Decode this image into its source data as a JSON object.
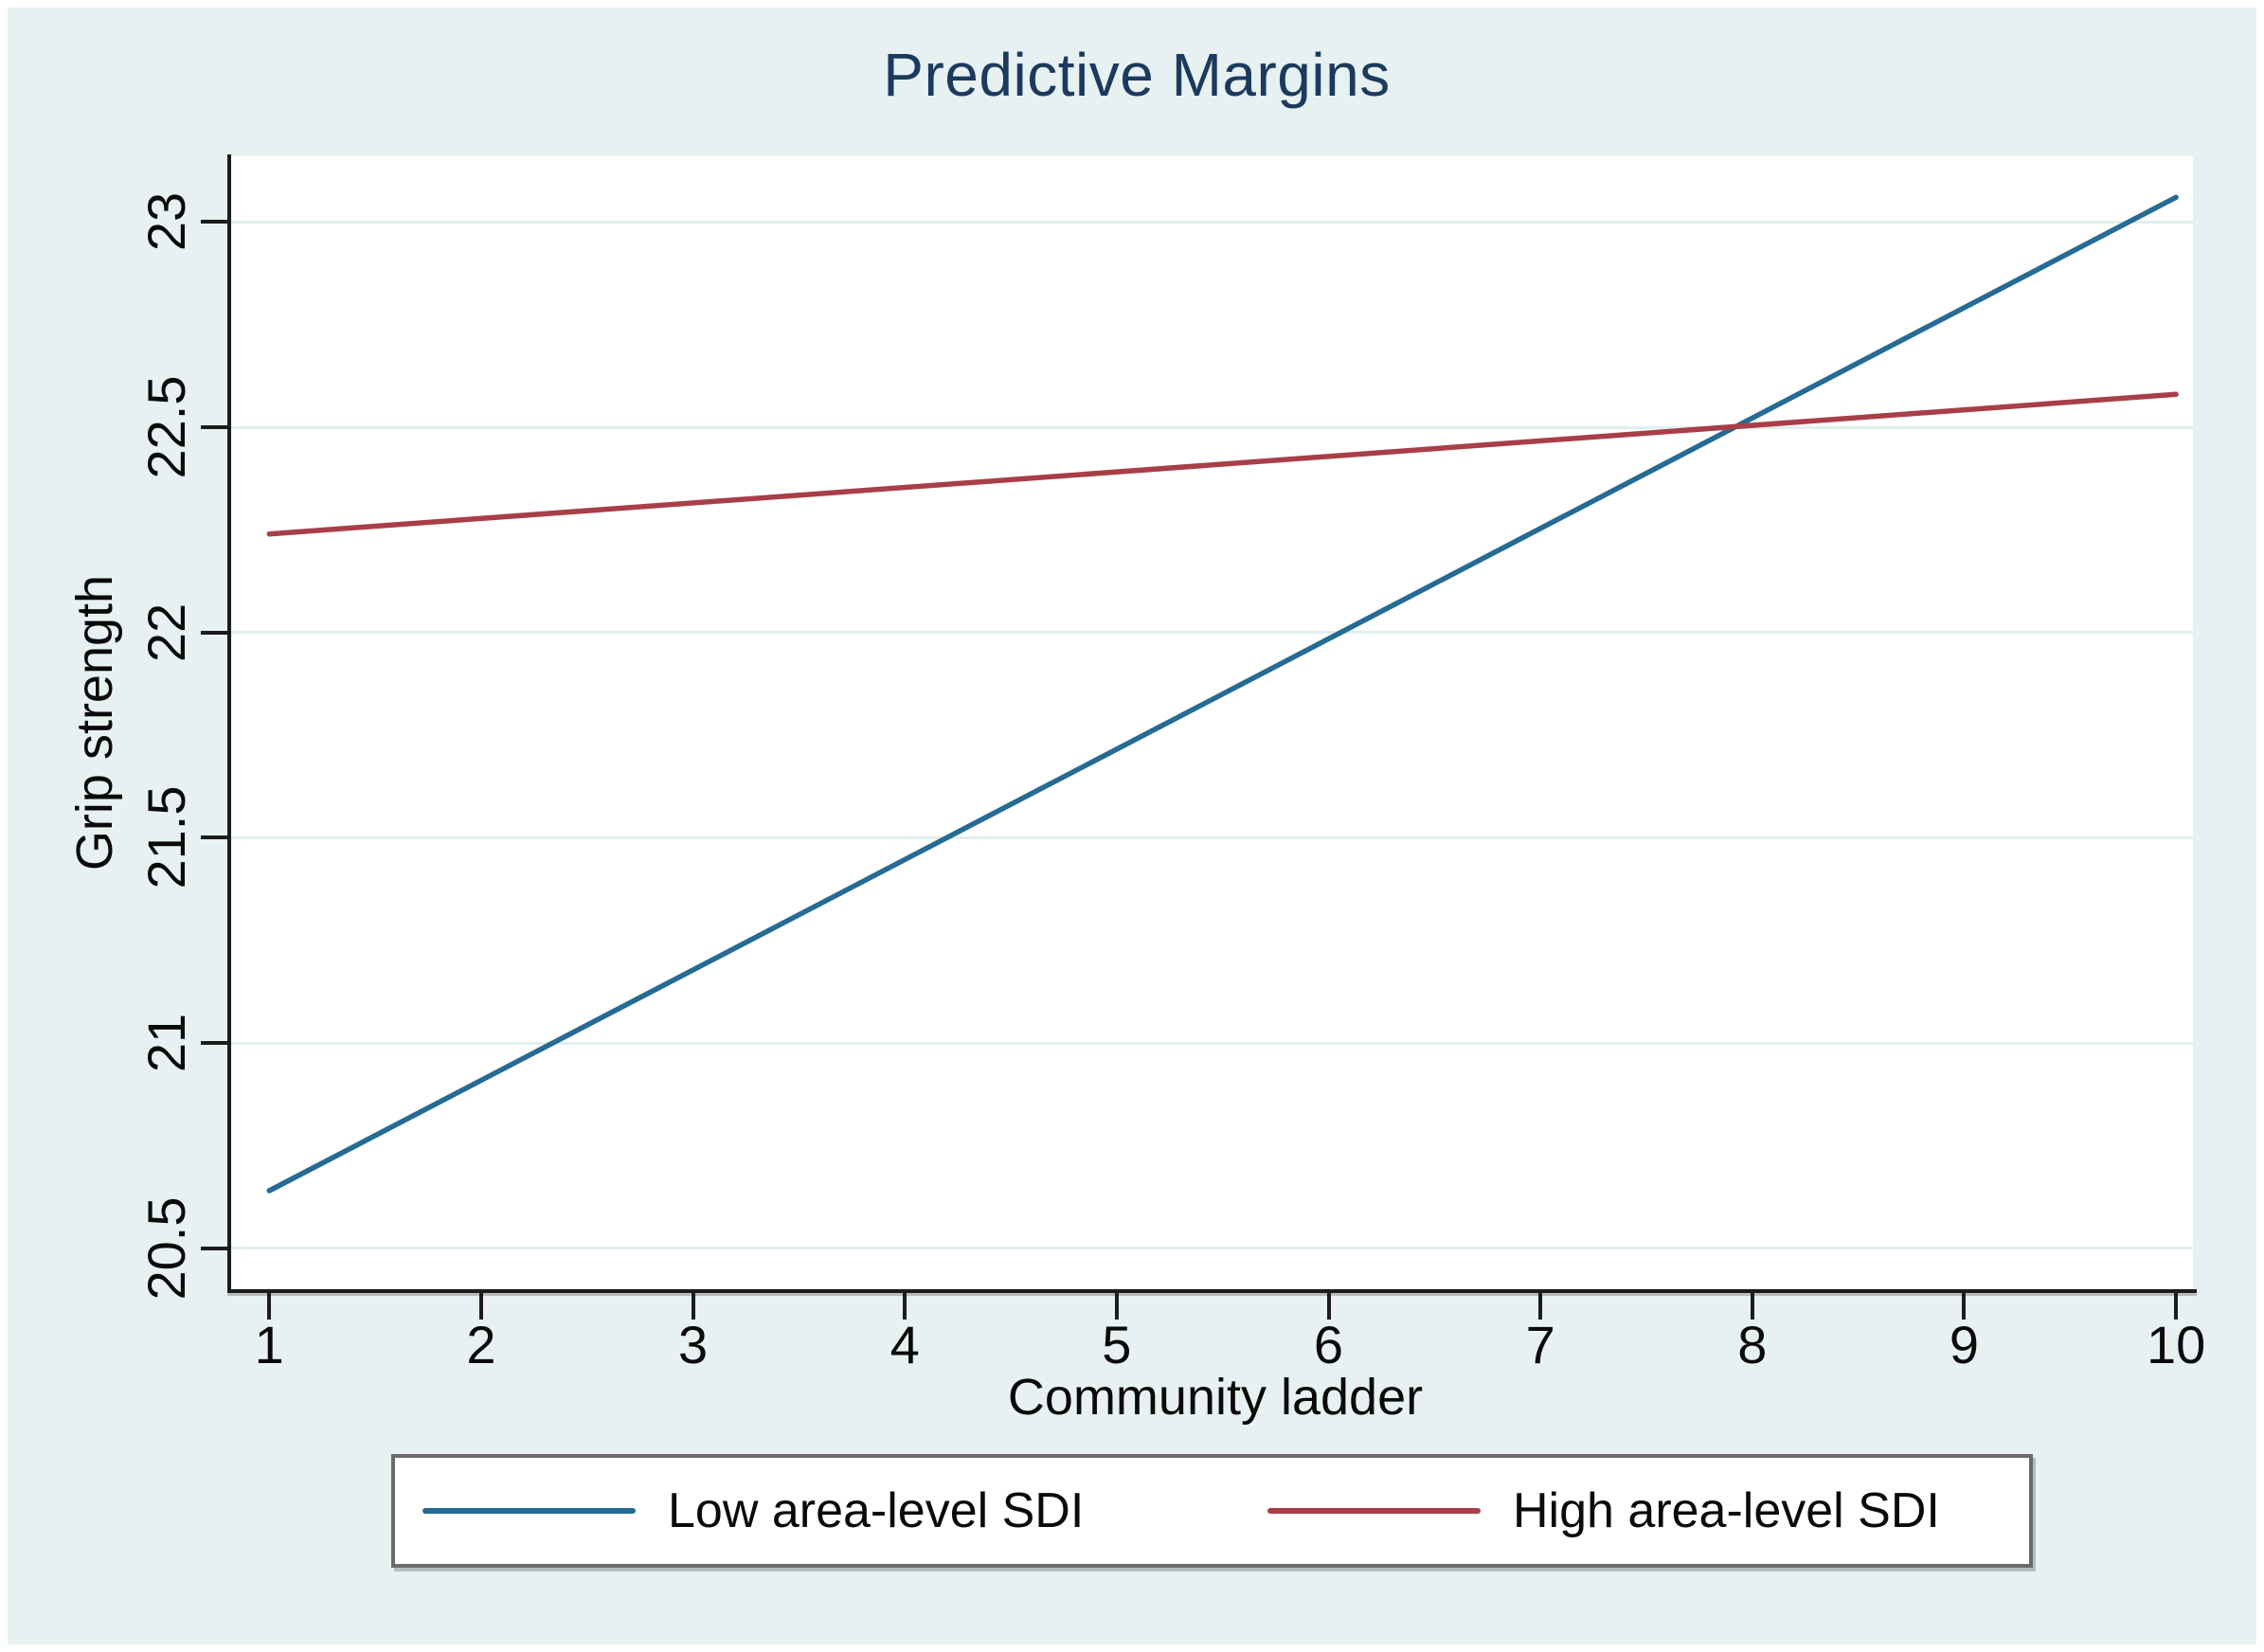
{
  "figure": {
    "title": "Predictive Margins"
  },
  "chart_data": {
    "type": "line",
    "title": "Predictive Margins",
    "xlabel": "Community ladder",
    "ylabel": "Grip strength",
    "xlim": [
      0.82,
      10.08
    ],
    "ylim": [
      20.4,
      23.16
    ],
    "x_ticks": [
      1,
      2,
      3,
      4,
      5,
      6,
      7,
      8,
      9,
      10
    ],
    "x_tick_labels": [
      "1",
      "2",
      "3",
      "4",
      "5",
      "6",
      "7",
      "8",
      "9",
      "10"
    ],
    "y_ticks": [
      20.5,
      21,
      21.5,
      22,
      22.5,
      23
    ],
    "y_tick_labels": [
      "20.5",
      "21",
      "21.5",
      "22",
      "22.5",
      "23"
    ],
    "grid": "horizontal-gridlines-only",
    "legend_position": "bottom",
    "series": [
      {
        "name": "Low area-level SDI",
        "color": "#266b93",
        "x": [
          1,
          10
        ],
        "y": [
          20.64,
          23.06
        ]
      },
      {
        "name": "High area-level SDI",
        "color": "#a83f48",
        "x": [
          1,
          10
        ],
        "y": [
          22.24,
          22.58
        ]
      }
    ],
    "styles": {
      "background": "#e7f1f2",
      "plot_background": "#ffffff",
      "gridline_color": "#e2eef0",
      "axis_color": "#1c1c1c",
      "tick_color": "#1c1c1c",
      "title_color": "#1c3a5e",
      "text_color": "#0a0a0a",
      "legend_border_color": "#6b6b6b",
      "legend_background": "#ffffff"
    }
  }
}
